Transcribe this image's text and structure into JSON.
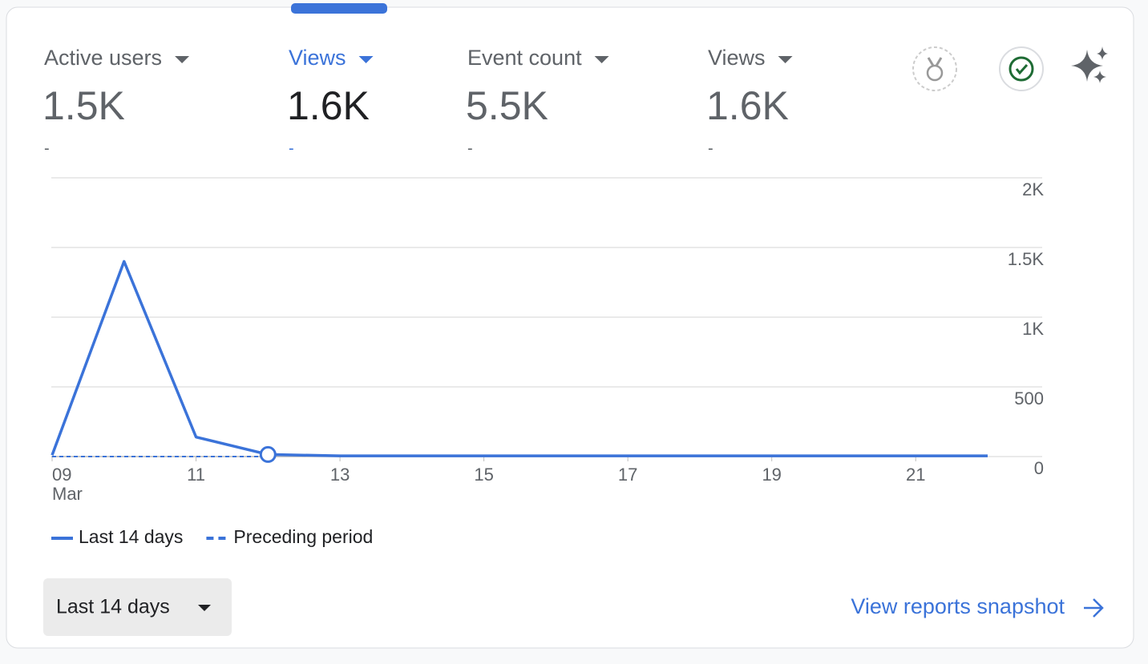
{
  "metrics": [
    {
      "label": "Active users",
      "value": "1.5K",
      "change": "-"
    },
    {
      "label": "Views",
      "value": "1.6K",
      "change": "-"
    },
    {
      "label": "Event count",
      "value": "5.5K",
      "change": "-"
    },
    {
      "label": "Views",
      "value": "1.6K",
      "change": "-"
    }
  ],
  "selected_metric": 1,
  "chart_data": {
    "type": "line",
    "categories": [
      "09",
      null,
      "11",
      null,
      "13",
      null,
      "15",
      null,
      "17",
      null,
      "19",
      null,
      "21",
      null
    ],
    "x_sublabel": "Mar",
    "series": [
      {
        "name": "Last 14 days",
        "color": "#3b73d9",
        "style": "solid",
        "values": [
          10,
          1400,
          140,
          15,
          5,
          5,
          5,
          5,
          5,
          5,
          5,
          5,
          5,
          5
        ]
      },
      {
        "name": "Preceding period",
        "color": "#3b73d9",
        "style": "dashed",
        "values": [
          0,
          0,
          0,
          0,
          null,
          null,
          null,
          null,
          null,
          null,
          null,
          null,
          null,
          null
        ]
      }
    ],
    "ylim": [
      0,
      2000
    ],
    "yticks": [
      0,
      500,
      {
        "value": 1000,
        "label": "1K"
      },
      {
        "value": 1500,
        "label": "1.5K"
      },
      {
        "value": 2000,
        "label": "2K"
      }
    ],
    "grid": true,
    "y_axis_side": "right"
  },
  "date_range": "Last 14 days",
  "link": "View reports snapshot"
}
